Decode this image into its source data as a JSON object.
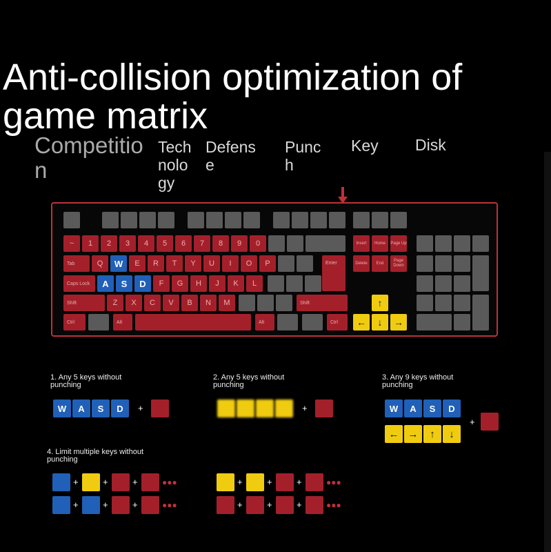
{
  "title_line1": "Anti-collision optimization of",
  "title_line2": "game matrix",
  "features": [
    "Competitio n",
    "Tech nolo gy",
    "Defens e",
    "Punc h",
    "Key",
    "Disk"
  ],
  "keyboard": {
    "row1": [
      "~",
      "1",
      "2",
      "3",
      "4",
      "5",
      "6",
      "7",
      "8",
      "9",
      "0"
    ],
    "tab": "Tab",
    "q": "Q",
    "w": "W",
    "e": "E",
    "r": "R",
    "t": "T",
    "y": "Y",
    "u": "U",
    "i": "I",
    "o": "O",
    "p": "P",
    "enter": "Enter",
    "caps": "Caps Lock",
    "a": "A",
    "s": "S",
    "d": "D",
    "f": "F",
    "g": "G",
    "h": "H",
    "j": "J",
    "k": "K",
    "l": "L",
    "shift_left": "Shift",
    "z": "Z",
    "x": "X",
    "c": "C",
    "v": "V",
    "b": "B",
    "n": "N",
    "m": "M",
    "shift_right": "Shift",
    "ctrl_left": "Ctrl",
    "alt_left": "Alt",
    "alt_right": "Alt",
    "ctrl_right": "Ctrl",
    "insert": "Insert",
    "home": "Home",
    "page_up": "Page Up",
    "delete": "Delete",
    "end": "End",
    "page_down": "Page Down",
    "arrow_up": "↑",
    "arrow_left": "←",
    "arrow_down": "↓",
    "arrow_right": "→"
  },
  "captions": {
    "c1": "1. Any 5 keys without punching",
    "c2": "2. Any 5 keys without punching",
    "c3": "3. Any 9 keys without punching",
    "c4": "4. Limit multiple keys without punching"
  },
  "demo": {
    "wasd": [
      "W",
      "A",
      "S",
      "D"
    ],
    "arrows": [
      "←",
      "→",
      "↑",
      "↓"
    ],
    "plus": "+",
    "dots": "●●●"
  },
  "colors": {
    "red": "#a3202b",
    "blue": "#2060b8",
    "yellow": "#f0cc10",
    "gray": "#5a5a5a"
  }
}
